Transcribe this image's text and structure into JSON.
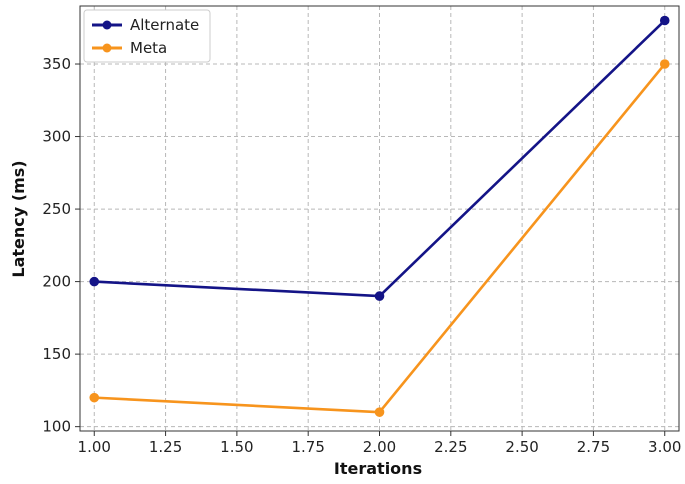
{
  "chart_data": {
    "type": "line",
    "title": "",
    "xlabel": "Iterations",
    "ylabel": "Latency (ms)",
    "xlim": [
      0.95,
      3.05
    ],
    "ylim": [
      97,
      390
    ],
    "xticks": [
      1.0,
      1.25,
      1.5,
      1.75,
      2.0,
      2.25,
      2.5,
      2.75,
      3.0
    ],
    "xtick_labels": [
      "1.00",
      "1.25",
      "1.50",
      "1.75",
      "2.00",
      "2.25",
      "2.50",
      "2.75",
      "3.00"
    ],
    "yticks": [
      100,
      150,
      200,
      250,
      300,
      350
    ],
    "ytick_labels": [
      "100",
      "150",
      "200",
      "250",
      "300",
      "350"
    ],
    "grid": true,
    "legend_position": "top-left",
    "x": [
      1.0,
      2.0,
      3.0
    ],
    "series": [
      {
        "name": "Alternate",
        "color": "#141487",
        "values": [
          200,
          190,
          380
        ]
      },
      {
        "name": "Meta",
        "color": "#f7941d",
        "values": [
          120,
          110,
          350
        ]
      }
    ]
  }
}
